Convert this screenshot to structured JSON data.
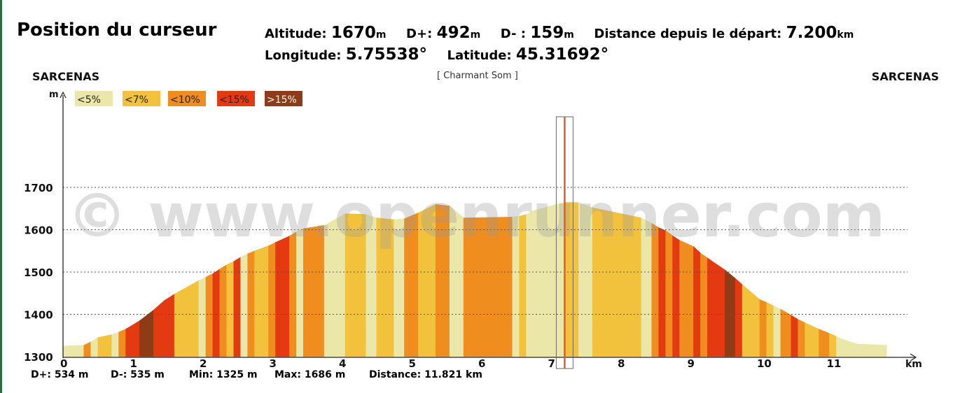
{
  "header": {
    "title": "Position du curseur",
    "altitude_label": "Altitude:",
    "altitude_value": "1670",
    "altitude_unit": "m",
    "dplus_label": "D+:",
    "dplus_value": "492",
    "dplus_unit": "m",
    "dminus_label": "D- :",
    "dminus_value": "159",
    "dminus_unit": "m",
    "distance_label": "Distance depuis le départ:",
    "distance_value": "7.200",
    "distance_unit": "km",
    "longitude_label": "Longitude:",
    "longitude_value": "5.75538°",
    "latitude_label": "Latitude:",
    "latitude_value": "45.31692°"
  },
  "start_place": "SARCENAS",
  "end_place": "SARCENAS",
  "route_name": "[ Charmant Som ]",
  "watermark": "© www.openrunner.com",
  "stats": {
    "dplus": "D+: 534 m",
    "dminus": "D-: 535 m",
    "min": "Min: 1325 m",
    "max": "Max: 1686 m",
    "distance": "Distance: 11.821 km"
  },
  "colors": {
    "grade_lt5": "#ebe7a8",
    "grade_lt7": "#f3c23c",
    "grade_lt10": "#ef8d1f",
    "grade_lt15": "#e43a12",
    "grade_gt15": "#8e3c15",
    "cursor": "#e05a3a"
  },
  "chart_data": {
    "type": "area",
    "xlabel": "km",
    "ylabel": "m",
    "xlim": [
      0,
      11.821
    ],
    "ylim": [
      1300,
      1700
    ],
    "x_ticks": [
      "0",
      "1",
      "2",
      "3",
      "4",
      "5",
      "6",
      "7",
      "8",
      "9",
      "10",
      "11"
    ],
    "y_ticks": [
      "1300",
      "1400",
      "1500",
      "1600",
      "1700"
    ],
    "grid": "horizontal dotted",
    "legend": {
      "placement": "top-left",
      "entries": [
        {
          "label": "<5%",
          "grade": "lt5"
        },
        {
          "label": "<7%",
          "grade": "lt7"
        },
        {
          "label": "<10%",
          "grade": "lt10"
        },
        {
          "label": "<15%",
          "grade": "lt15"
        },
        {
          "label": ">15%",
          "grade": "gt15"
        }
      ]
    },
    "cursor_km": 7.2,
    "profile": [
      {
        "km": 0.0,
        "alt": 1325,
        "grade": "lt5"
      },
      {
        "km": 0.3,
        "alt": 1327,
        "grade": "lt5"
      },
      {
        "km": 0.4,
        "alt": 1335,
        "grade": "lt10"
      },
      {
        "km": 0.5,
        "alt": 1345,
        "grade": "lt5"
      },
      {
        "km": 0.7,
        "alt": 1352,
        "grade": "lt7"
      },
      {
        "km": 0.8,
        "alt": 1358,
        "grade": "lt5"
      },
      {
        "km": 0.9,
        "alt": 1365,
        "grade": "lt10"
      },
      {
        "km": 1.1,
        "alt": 1385,
        "grade": "lt15"
      },
      {
        "km": 1.3,
        "alt": 1410,
        "grade": "gt15"
      },
      {
        "km": 1.45,
        "alt": 1432,
        "grade": "lt15"
      },
      {
        "km": 1.6,
        "alt": 1448,
        "grade": "lt15"
      },
      {
        "km": 1.95,
        "alt": 1480,
        "grade": "lt7"
      },
      {
        "km": 2.05,
        "alt": 1488,
        "grade": "lt5"
      },
      {
        "km": 2.15,
        "alt": 1496,
        "grade": "lt10"
      },
      {
        "km": 2.25,
        "alt": 1507,
        "grade": "lt15"
      },
      {
        "km": 2.35,
        "alt": 1517,
        "grade": "lt10"
      },
      {
        "km": 2.45,
        "alt": 1525,
        "grade": "lt7"
      },
      {
        "km": 2.55,
        "alt": 1535,
        "grade": "lt15"
      },
      {
        "km": 2.65,
        "alt": 1543,
        "grade": "lt5"
      },
      {
        "km": 2.75,
        "alt": 1550,
        "grade": "lt10"
      },
      {
        "km": 2.95,
        "alt": 1562,
        "grade": "lt7"
      },
      {
        "km": 3.05,
        "alt": 1570,
        "grade": "lt10"
      },
      {
        "km": 3.25,
        "alt": 1585,
        "grade": "lt15"
      },
      {
        "km": 3.35,
        "alt": 1595,
        "grade": "lt10"
      },
      {
        "km": 3.45,
        "alt": 1603,
        "grade": "lt5"
      },
      {
        "km": 3.75,
        "alt": 1610,
        "grade": "lt10"
      },
      {
        "km": 4.05,
        "alt": 1638,
        "grade": "lt5"
      },
      {
        "km": 4.35,
        "alt": 1636,
        "grade": "lt7"
      },
      {
        "km": 4.5,
        "alt": 1628,
        "grade": "lt5"
      },
      {
        "km": 4.75,
        "alt": 1624,
        "grade": "lt7"
      },
      {
        "km": 4.9,
        "alt": 1626,
        "grade": "lt5"
      },
      {
        "km": 5.1,
        "alt": 1640,
        "grade": "lt10"
      },
      {
        "km": 5.35,
        "alt": 1660,
        "grade": "lt7"
      },
      {
        "km": 5.55,
        "alt": 1656,
        "grade": "lt10"
      },
      {
        "km": 5.75,
        "alt": 1628,
        "grade": "lt5"
      },
      {
        "km": 6.45,
        "alt": 1630,
        "grade": "lt10"
      },
      {
        "km": 6.55,
        "alt": 1632,
        "grade": "lt5"
      },
      {
        "km": 6.65,
        "alt": 1636,
        "grade": "lt7"
      },
      {
        "km": 6.75,
        "alt": 1645,
        "grade": "lt5"
      },
      {
        "km": 7.2,
        "alt": 1665,
        "grade": "lt5"
      },
      {
        "km": 7.4,
        "alt": 1664,
        "grade": "lt7"
      },
      {
        "km": 7.6,
        "alt": 1652,
        "grade": "lt5"
      },
      {
        "km": 8.3,
        "alt": 1628,
        "grade": "lt7"
      },
      {
        "km": 8.45,
        "alt": 1615,
        "grade": "lt5"
      },
      {
        "km": 8.55,
        "alt": 1605,
        "grade": "lt10"
      },
      {
        "km": 8.65,
        "alt": 1598,
        "grade": "lt15"
      },
      {
        "km": 8.75,
        "alt": 1586,
        "grade": "lt10"
      },
      {
        "km": 8.85,
        "alt": 1575,
        "grade": "lt15"
      },
      {
        "km": 9.05,
        "alt": 1560,
        "grade": "lt10"
      },
      {
        "km": 9.15,
        "alt": 1545,
        "grade": "lt15"
      },
      {
        "km": 9.25,
        "alt": 1533,
        "grade": "lt10"
      },
      {
        "km": 9.5,
        "alt": 1505,
        "grade": "lt15"
      },
      {
        "km": 9.65,
        "alt": 1485,
        "grade": "gt15"
      },
      {
        "km": 9.75,
        "alt": 1470,
        "grade": "lt15"
      },
      {
        "km": 10.0,
        "alt": 1435,
        "grade": "lt7"
      },
      {
        "km": 10.1,
        "alt": 1428,
        "grade": "lt10"
      },
      {
        "km": 10.2,
        "alt": 1420,
        "grade": "lt7"
      },
      {
        "km": 10.3,
        "alt": 1412,
        "grade": "lt5"
      },
      {
        "km": 10.45,
        "alt": 1398,
        "grade": "lt10"
      },
      {
        "km": 10.55,
        "alt": 1388,
        "grade": "lt15"
      },
      {
        "km": 10.65,
        "alt": 1380,
        "grade": "lt10"
      },
      {
        "km": 10.85,
        "alt": 1365,
        "grade": "lt7"
      },
      {
        "km": 11.0,
        "alt": 1355,
        "grade": "lt10"
      },
      {
        "km": 11.1,
        "alt": 1348,
        "grade": "lt7"
      },
      {
        "km": 11.2,
        "alt": 1340,
        "grade": "lt5"
      },
      {
        "km": 11.4,
        "alt": 1330,
        "grade": "lt5"
      },
      {
        "km": 11.821,
        "alt": 1327,
        "grade": "lt5"
      }
    ]
  }
}
